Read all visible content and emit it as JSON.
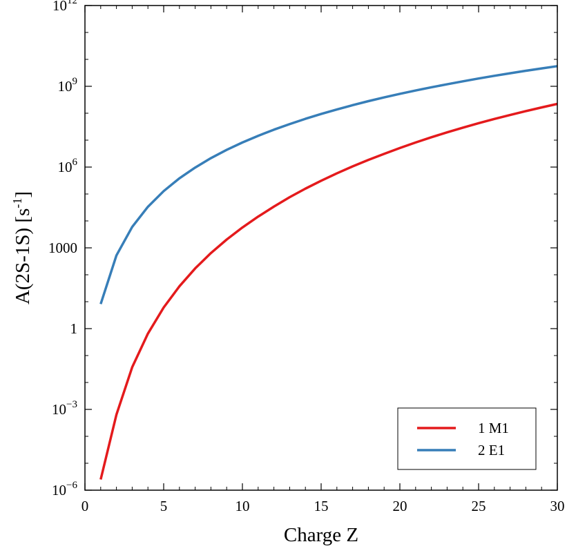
{
  "chart_data": {
    "type": "line",
    "title": "",
    "xlabel": "Charge Z",
    "ylabel_main": "A(2S-1S) [s",
    "ylabel_sup": "-1",
    "ylabel_end": "]",
    "xlim": [
      0,
      30
    ],
    "ylim": [
      1e-06,
      1000000000000.0
    ],
    "yscale": "log",
    "grid": false,
    "legend_position": "lower-right",
    "x_ticks": [
      {
        "value": 0,
        "label": "0"
      },
      {
        "value": 5,
        "label": "5"
      },
      {
        "value": 10,
        "label": "10"
      },
      {
        "value": 15,
        "label": "15"
      },
      {
        "value": 20,
        "label": "20"
      },
      {
        "value": 25,
        "label": "25"
      },
      {
        "value": 30,
        "label": "30"
      }
    ],
    "y_ticks": [
      {
        "value": 1e-06,
        "base": "10",
        "exp": "−6",
        "plain": ""
      },
      {
        "value": 0.001,
        "base": "10",
        "exp": "−3",
        "plain": ""
      },
      {
        "value": 1,
        "base": "",
        "exp": "",
        "plain": "1"
      },
      {
        "value": 1000,
        "base": "",
        "exp": "",
        "plain": "1000"
      },
      {
        "value": 1000000.0,
        "base": "10",
        "exp": "6",
        "plain": ""
      },
      {
        "value": 1000000000.0,
        "base": "10",
        "exp": "9",
        "plain": ""
      },
      {
        "value": 1000000000000.0,
        "base": "10",
        "exp": "12",
        "plain": ""
      }
    ],
    "series": [
      {
        "name": "1 M1",
        "color": "#e41a1c",
        "x": [
          1,
          2,
          3,
          4,
          5,
          6,
          7,
          8,
          9,
          10,
          11,
          12,
          13,
          14,
          15,
          16,
          17,
          18,
          19,
          20,
          21,
          22,
          23,
          24,
          25,
          26,
          27,
          28,
          29,
          30
        ],
        "y": [
          2.5e-06,
          0.00064,
          0.0369,
          0.655,
          6.1,
          37.3,
          172,
          640,
          2030,
          5700,
          14500,
          34000,
          76000,
          158000,
          311000,
          585000,
          1060000,
          1850000,
          3100000,
          5120000,
          8200000,
          12800000,
          19500000,
          29000000,
          42500000,
          61000000,
          86000000,
          120000000,
          164000000,
          222000000
        ]
      },
      {
        "name": "2 E1",
        "color": "#377eb8",
        "x": [
          1,
          2,
          3,
          4,
          5,
          6,
          7,
          8,
          9,
          10,
          11,
          12,
          13,
          14,
          15,
          16,
          17,
          18,
          19,
          20,
          21,
          22,
          23,
          24,
          25,
          26,
          27,
          28,
          29,
          30
        ],
        "y": [
          8.2,
          524,
          5980,
          33600,
          128000,
          383000,
          960000,
          2150000,
          4360000,
          8200000,
          14500000,
          24500000,
          39500000,
          62000000,
          94000000,
          138000000,
          199000000,
          281000000,
          388000000,
          525000000,
          700000000,
          920000000,
          1190000000,
          1530000000,
          1950000000,
          2450000000,
          3050000000,
          3770000000,
          4610000000,
          5600000000
        ]
      }
    ]
  }
}
